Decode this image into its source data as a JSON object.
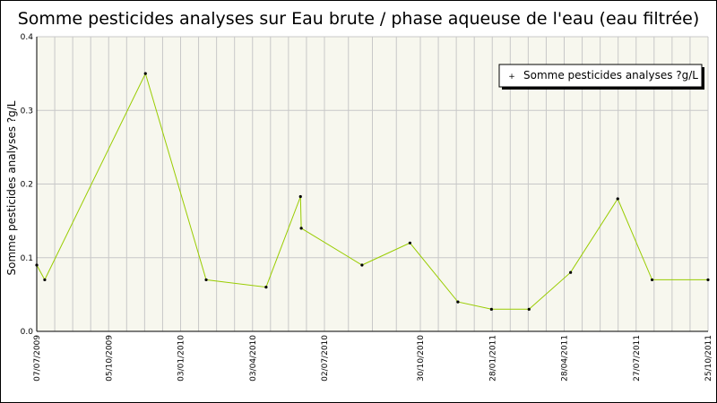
{
  "colors": {
    "plot_background": "#f7f7ee",
    "grid": "#c8c8c8",
    "line": "#99cc00",
    "marker": "#000000",
    "frame": "#000000"
  },
  "chart_data": {
    "type": "line",
    "title": "Somme pesticides analyses sur Eau brute / phase aqueuse de l'eau (eau filtrée)",
    "xlabel": "",
    "ylabel": "Somme pesticides analyses ?g/L",
    "x_axis_type": "date",
    "xlim": [
      "2009-07-07",
      "2011-10-25"
    ],
    "ylim": [
      0,
      0.4
    ],
    "x_tick_labels": [
      "07/07/2009",
      "05/10/2009",
      "03/01/2010",
      "03/04/2010",
      "02/07/2010",
      "30/10/2010",
      "28/01/2011",
      "28/04/2011",
      "27/07/2011",
      "25/10/2011"
    ],
    "x_tick_dates": [
      "2009-07-07",
      "2009-10-05",
      "2010-01-03",
      "2010-04-03",
      "2010-07-02",
      "2010-10-30",
      "2011-01-28",
      "2011-04-28",
      "2011-07-27",
      "2011-10-25"
    ],
    "y_ticks": [
      0,
      0.1,
      0.2,
      0.3,
      0.4
    ],
    "y_tick_labels": [
      "0.0",
      "0.1",
      "0.2",
      "0.3",
      "0.4"
    ],
    "grid": true,
    "legend_position": "top-right",
    "series": [
      {
        "name": "Somme pesticides analyses ?g/L",
        "x": [
          "2009-07-07",
          "2009-07-17",
          "2009-11-20",
          "2010-02-04",
          "2010-04-20",
          "2010-06-02",
          "2010-06-03",
          "2010-08-18",
          "2010-10-17",
          "2010-12-16",
          "2011-01-27",
          "2011-03-15",
          "2011-05-06",
          "2011-07-04",
          "2011-08-16",
          "2011-10-25"
        ],
        "values": [
          0.09,
          0.07,
          0.35,
          0.07,
          0.06,
          0.183,
          0.14,
          0.09,
          0.12,
          0.04,
          0.03,
          0.03,
          0.08,
          0.18,
          0.07,
          0.07
        ]
      }
    ]
  }
}
